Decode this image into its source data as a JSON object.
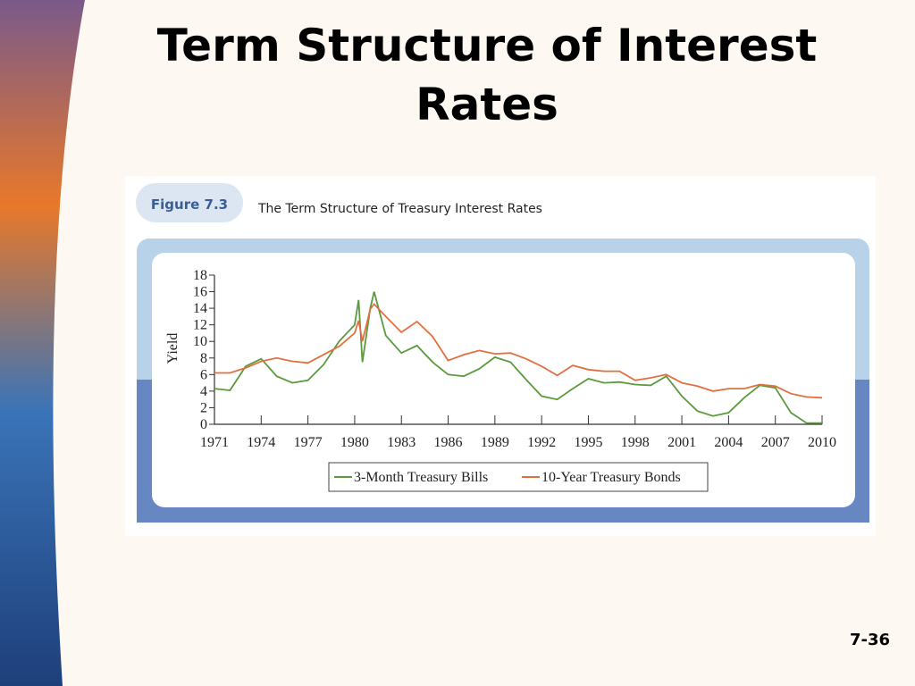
{
  "slide": {
    "title": "Term Structure of Interest Rates",
    "page_number": "7-36"
  },
  "chart_data": {
    "type": "line",
    "figure_label": "Figure 7.3",
    "title": "The Term Structure of Treasury Interest Rates",
    "y_label": "Yield",
    "x": [
      1971,
      1972,
      1973,
      1974,
      1975,
      1976,
      1977,
      1978,
      1979,
      1980,
      1980.25,
      1980.5,
      1981,
      1981.25,
      1982,
      1983,
      1984,
      1985,
      1986,
      1987,
      1988,
      1989,
      1990,
      1991,
      1992,
      1993,
      1994,
      1995,
      1996,
      1997,
      1998,
      1999,
      2000,
      2001,
      2002,
      2003,
      2004,
      2005,
      2006,
      2007,
      2008,
      2009,
      2010
    ],
    "series": [
      {
        "name": "3-Month Treasury Bills",
        "color": "#5b9a3e",
        "values": [
          4.3,
          4.1,
          7.0,
          7.9,
          5.8,
          5.0,
          5.3,
          7.2,
          10.0,
          12.0,
          15.0,
          7.5,
          14.0,
          16.0,
          10.7,
          8.6,
          9.5,
          7.5,
          6.0,
          5.8,
          6.7,
          8.1,
          7.5,
          5.4,
          3.4,
          3.0,
          4.3,
          5.5,
          5.0,
          5.1,
          4.8,
          4.7,
          5.8,
          3.4,
          1.6,
          1.0,
          1.4,
          3.2,
          4.7,
          4.4,
          1.4,
          0.15,
          0.14
        ]
      },
      {
        "name": "10-Year Treasury Bonds",
        "color": "#e2703f",
        "values": [
          6.2,
          6.2,
          6.8,
          7.6,
          8.0,
          7.6,
          7.4,
          8.4,
          9.4,
          11.0,
          12.5,
          10.0,
          13.9,
          14.5,
          13.0,
          11.1,
          12.4,
          10.6,
          7.7,
          8.4,
          8.9,
          8.5,
          8.6,
          7.9,
          7.0,
          5.9,
          7.1,
          6.6,
          6.4,
          6.4,
          5.3,
          5.6,
          6.0,
          5.0,
          4.6,
          4.0,
          4.3,
          4.3,
          4.8,
          4.6,
          3.7,
          3.3,
          3.2
        ]
      }
    ],
    "xlim": [
      1971,
      2010
    ],
    "xticks": [
      1971,
      1974,
      1977,
      1980,
      1983,
      1986,
      1989,
      1992,
      1995,
      1998,
      2001,
      2004,
      2007,
      2010
    ],
    "ylim": [
      0,
      18
    ],
    "yticks": [
      0,
      2,
      4,
      6,
      8,
      10,
      12,
      14,
      16,
      18
    ]
  }
}
